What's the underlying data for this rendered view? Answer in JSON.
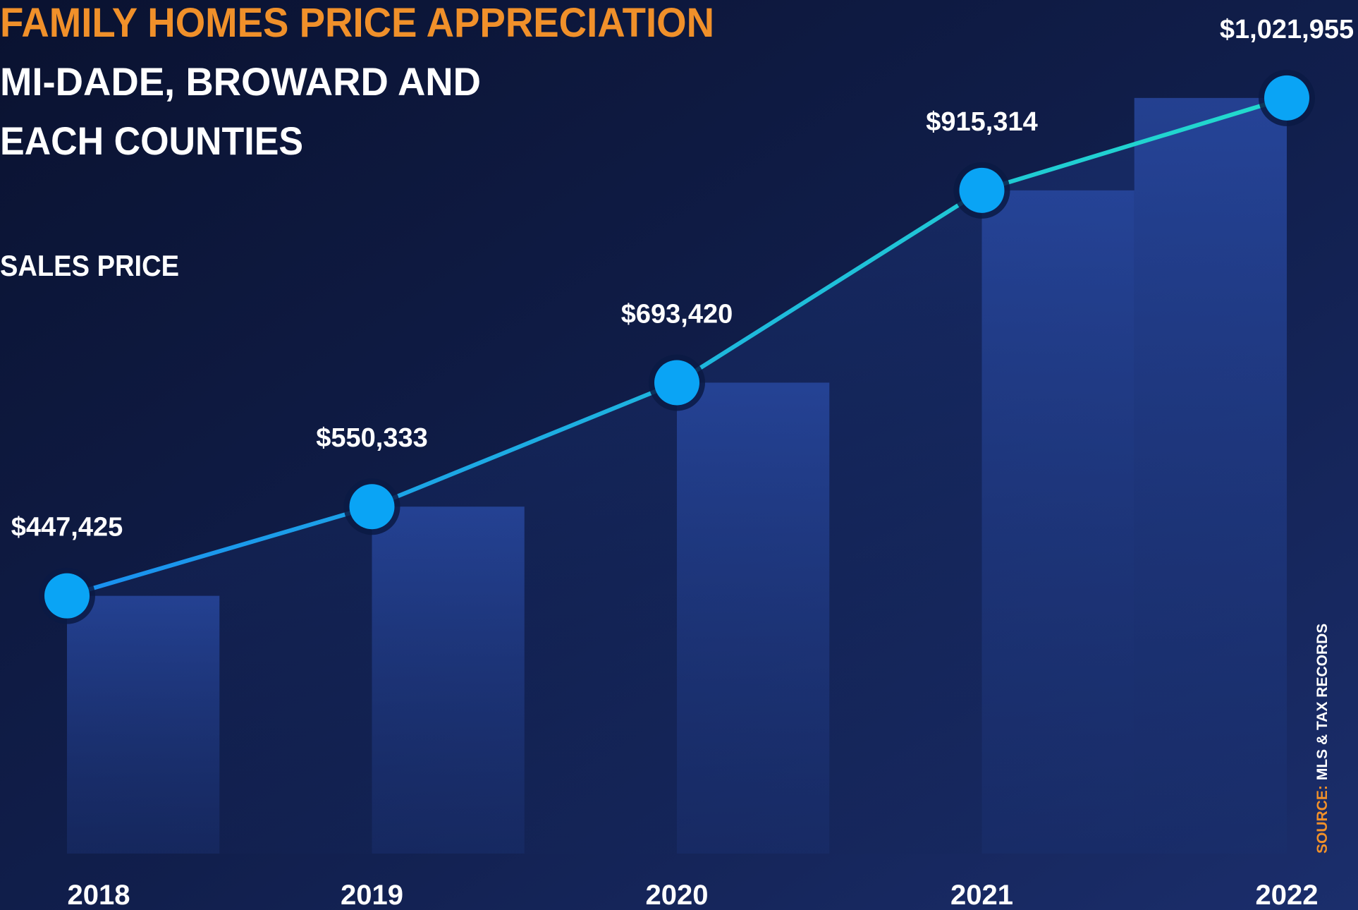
{
  "chart_data": {
    "type": "line",
    "title": "FAMILY HOMES PRICE APPRECIATION",
    "subtitle": [
      "MI-DADE, BROWARD AND",
      "EACH COUNTIES"
    ],
    "y_label": "SALES PRICE",
    "source": {
      "label": "SOURCE:",
      "text": "MLS & TAX RECORDS"
    },
    "categories": [
      "2018",
      "2019",
      "2020",
      "2021",
      "2022"
    ],
    "values": [
      447425,
      550333,
      693420,
      915314,
      1021955
    ],
    "value_labels": [
      "$447,425",
      "$550,333",
      "$693,420",
      "$915,314",
      "$1,021,955"
    ],
    "ylim": [
      150000,
      1100000
    ],
    "color": "#0aa4f5"
  }
}
